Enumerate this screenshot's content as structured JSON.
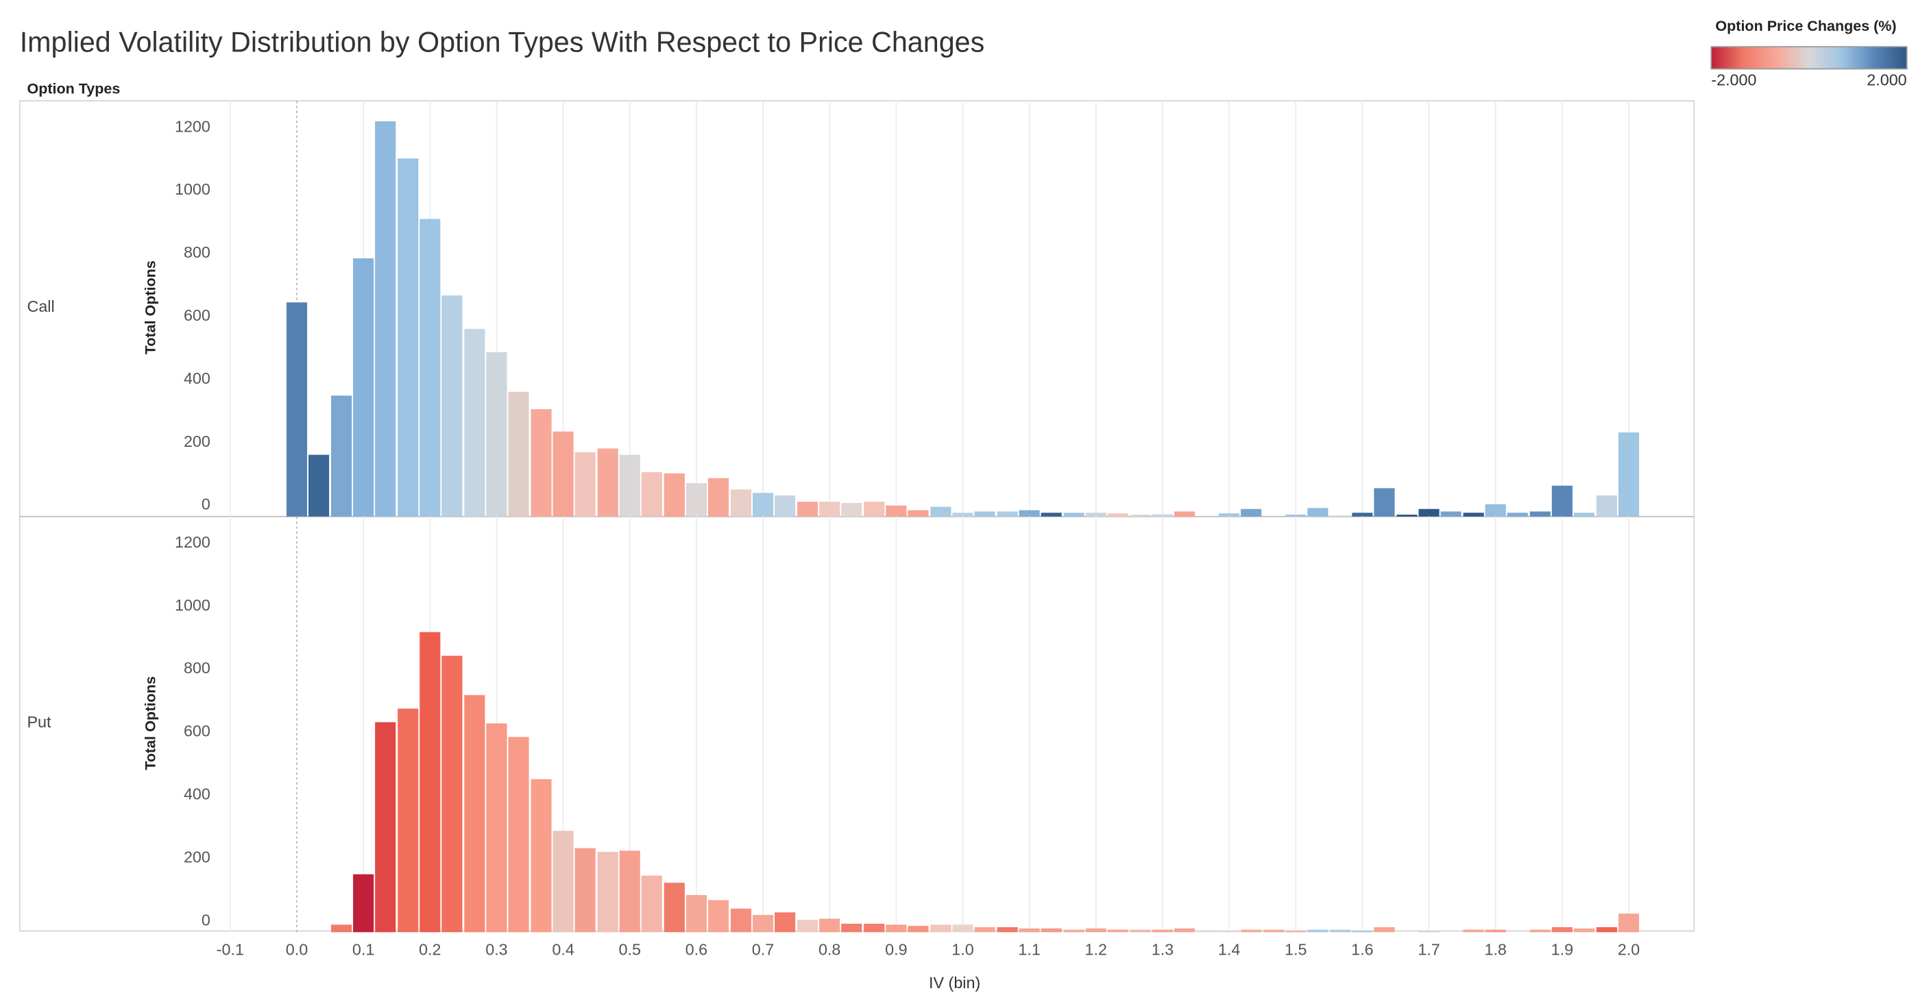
{
  "chart_data": {
    "type": "bar",
    "title": "Implied Volatility Distribution by Option Types With Respect to Price Changes",
    "row_header": "Option Types",
    "x_label": "IV (bin)",
    "y_label": "Total Options",
    "facet": true,
    "grid": true,
    "x": [
      0,
      0.033,
      0.067,
      0.1,
      0.133,
      0.167,
      0.2,
      0.233,
      0.267,
      0.3,
      0.333,
      0.367,
      0.4,
      0.433,
      0.467,
      0.5,
      0.533,
      0.567,
      0.6,
      0.633,
      0.667,
      0.7,
      0.733,
      0.767,
      0.8,
      0.833,
      0.867,
      0.9,
      0.933,
      0.967,
      1,
      1.033,
      1.067,
      1.1,
      1.133,
      1.167,
      1.2,
      1.233,
      1.267,
      1.3,
      1.333,
      1.367,
      1.4,
      1.433,
      1.467,
      1.5,
      1.533,
      1.567,
      1.6,
      1.633,
      1.667,
      1.7,
      1.733,
      1.767,
      1.8,
      1.833,
      1.867,
      1.9,
      1.933,
      1.967,
      2
    ],
    "xlim": [
      -0.115,
      2.098
    ],
    "xticks": [
      -0.1,
      {
        "value": 0,
        "label": "0.0"
      },
      0.1,
      0.2,
      0.3,
      0.4,
      0.5,
      0.6,
      0.7,
      0.8,
      0.9,
      {
        "value": 1,
        "label": "1.0"
      },
      1.1,
      1.2,
      1.3,
      1.4,
      1.5,
      1.6,
      1.7,
      1.8,
      1.9,
      {
        "value": 2,
        "label": "2.0"
      }
    ],
    "ylim": [
      0,
      1320
    ],
    "yticks": [
      0,
      200,
      400,
      600,
      800,
      1000,
      1200
    ],
    "series": [
      {
        "name": "Call",
        "values": [
          680,
          196,
          384,
          820,
          1255,
          1137,
          945,
          702,
          596,
          522,
          396,
          341,
          270,
          204,
          216,
          196,
          141,
          137,
          106,
          122,
          86,
          75,
          67,
          47,
          47,
          43,
          47,
          35,
          20,
          31,
          12,
          16,
          16,
          20,
          12,
          12,
          12,
          10,
          6,
          7,
          16,
          0,
          10,
          24,
          0,
          6,
          27,
          3,
          12,
          90,
          6,
          24,
          16,
          12,
          39,
          12,
          16,
          98,
          12,
          67,
          267
        ],
        "colors": [
          "#5581b0",
          "#3a6796",
          "#7ba7d0",
          "#85b3dc",
          "#8fb9de",
          "#9bc3e3",
          "#9fc5e4",
          "#b5d0e5",
          "#c5d5e2",
          "#cdd6dd",
          "#e1cdc8",
          "#f7a899",
          "#f6a594",
          "#f0c6bc",
          "#f6a899",
          "#d9d7d8",
          "#f2c3b8",
          "#f8a696",
          "#dcd7d6",
          "#f7a797",
          "#e9cfc8",
          "#a9cbe5",
          "#c3d4e2",
          "#f6a898",
          "#f0c9c0",
          "#e3d6d2",
          "#f4c2b6",
          "#f6a494",
          "#f7a190",
          "#a7c9e3",
          "#b9d1e4",
          "#a5c7e3",
          "#aecde4",
          "#7fadd4",
          "#35618f",
          "#9fc4e3",
          "#c8d5df",
          "#f0c9c0",
          "#d9d7d8",
          "#c9d5e0",
          "#f7a292",
          "#dddddd",
          "#a5c7e3",
          "#77a5cf",
          "#dddddd",
          "#9fc4e3",
          "#91bcdf",
          "#c8d5df",
          "#3d6a98",
          "#5e8bbb",
          "#2f5784",
          "#2d5986",
          "#75a3cd",
          "#31598a",
          "#94bde0",
          "#7eacd3",
          "#5f8ebe",
          "#5786b7",
          "#a5c7e3",
          "#c1d3e2",
          "#9fc6e2"
        ]
      },
      {
        "name": "Put",
        "values": [
          0,
          0,
          24,
          184,
          667,
          710,
          953,
          878,
          753,
          663,
          620,
          486,
          322,
          267,
          255,
          259,
          180,
          157,
          118,
          102,
          75,
          55,
          63,
          39,
          43,
          27,
          27,
          24,
          20,
          24,
          24,
          16,
          16,
          12,
          12,
          8,
          12,
          8,
          8,
          8,
          12,
          4,
          4,
          8,
          8,
          4,
          8,
          8,
          4,
          16,
          0,
          4,
          0,
          8,
          8,
          0,
          8,
          16,
          12,
          16,
          59
        ],
        "colors": [
          "#dddddd",
          "#dddddd",
          "#f07a68",
          "#c0203a",
          "#e04848",
          "#f06f5d",
          "#ee5e4e",
          "#f06f5d",
          "#f58a77",
          "#f79a87",
          "#f79a87",
          "#f89f8c",
          "#ebc5bb",
          "#f5a08e",
          "#f0c1b6",
          "#f6a190",
          "#f3b6a8",
          "#f07b69",
          "#f6a898",
          "#f8a594",
          "#f58f7d",
          "#f6a898",
          "#f37c6a",
          "#eecbc3",
          "#f6a594",
          "#f27e6c",
          "#f37c6b",
          "#f7a190",
          "#f49483",
          "#f2c5ba",
          "#ead2cc",
          "#f7a695",
          "#f07a69",
          "#f6a393",
          "#f49a88",
          "#f6a898",
          "#f6a494",
          "#f6a494",
          "#f3b6aa",
          "#f7a190",
          "#f6a494",
          "#e2d6d3",
          "#e7d3cd",
          "#f6a898",
          "#f6a898",
          "#f6a494",
          "#a7c9e3",
          "#aecde4",
          "#9fc4e3",
          "#f6a494",
          "#dddddd",
          "#c8d5df",
          "#dddddd",
          "#f6a494",
          "#f49a88",
          "#dddddd",
          "#f6a494",
          "#f47f6d",
          "#f6a898",
          "#ef6550",
          "#f6a494"
        ]
      }
    ],
    "legend": {
      "title": "Option Price Changes (%)",
      "range": [
        -2,
        2
      ],
      "colors": [
        "#c0203a",
        "#f07a68",
        "#f6a898",
        "#d9d7d8",
        "#9fc5e4",
        "#5786b7",
        "#2f5784"
      ],
      "ticks": [
        {
          "value": -2,
          "label": "-2.000"
        },
        {
          "value": 2,
          "label": "2.000"
        }
      ]
    }
  }
}
